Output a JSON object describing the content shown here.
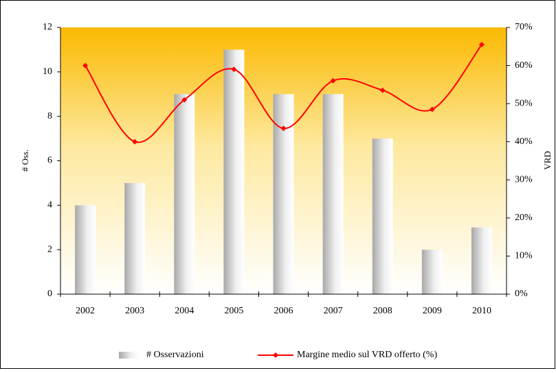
{
  "chart_data": {
    "type": "bar",
    "categories": [
      "2002",
      "2003",
      "2004",
      "2005",
      "2006",
      "2007",
      "2008",
      "2009",
      "2010"
    ],
    "series": [
      {
        "name": "# Osservazioni",
        "type": "bar",
        "color": "#bdbdbd",
        "values": [
          4,
          5,
          9,
          11,
          9,
          9,
          7,
          2,
          3
        ]
      },
      {
        "name": "Margine medio sul VRD offerto (%)",
        "type": "line",
        "axis": "y2",
        "color": "#ff0000",
        "values": [
          60,
          40,
          51,
          59,
          43.5,
          56,
          53.5,
          48.5,
          65.5
        ]
      }
    ],
    "ylabel": "# Oss.",
    "y2label": "VRD",
    "ylim": [
      0,
      12
    ],
    "yticks": [
      0,
      2,
      4,
      6,
      8,
      10,
      12
    ],
    "y2lim": [
      0,
      70
    ],
    "y2ticks": [
      {
        "value": 0,
        "label": "0%"
      },
      {
        "value": 10,
        "label": "10%"
      },
      {
        "value": 20,
        "label": "20%"
      },
      {
        "value": 30,
        "label": "30%"
      },
      {
        "value": 40,
        "label": "40%"
      },
      {
        "value": 50,
        "label": "50%"
      },
      {
        "value": 60,
        "label": "60%"
      },
      {
        "value": 70,
        "label": "70%"
      }
    ],
    "legend": "bottom"
  }
}
